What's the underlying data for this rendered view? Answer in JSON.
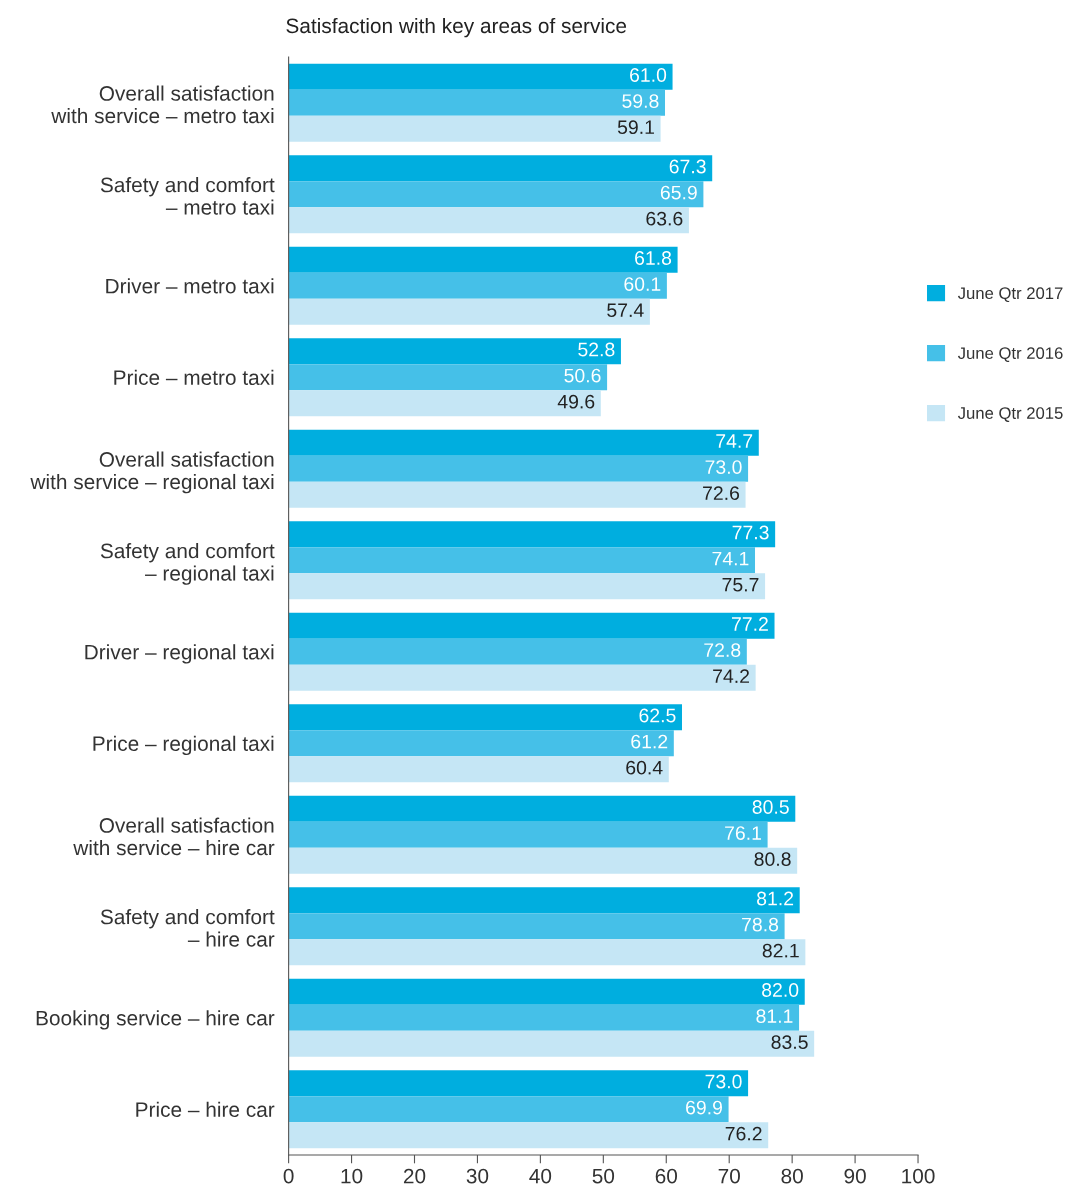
{
  "chart_data": {
    "type": "bar",
    "orientation": "horizontal",
    "title": "Satisfaction with key areas of service",
    "categories": [
      "Overall satisfaction\nwith service – metro taxi",
      "Safety and comfort\n– metro taxi",
      "Driver – metro taxi",
      "Price – metro taxi",
      "Overall satisfaction\nwith service – regional taxi",
      "Safety and comfort\n– regional taxi",
      "Driver – regional taxi",
      "Price – regional taxi",
      "Overall satisfaction\nwith service – hire car",
      "Safety and comfort\n– hire car",
      "Booking service – hire car",
      "Price – hire car"
    ],
    "series": [
      {
        "name": "June Qtr 2017",
        "color": "#00aedf",
        "values": [
          61.0,
          67.3,
          61.8,
          52.8,
          74.7,
          77.3,
          77.2,
          62.5,
          80.5,
          81.2,
          82.0,
          73.0
        ],
        "value_labels": [
          "61.0",
          "67.3",
          "61.8",
          "52.8",
          "74.7",
          "77.3",
          "77.2",
          "62.5",
          "80.5",
          "81.2",
          "82.0",
          "73.0"
        ]
      },
      {
        "name": "June Qtr 2016",
        "color": "#45c0e8",
        "values": [
          59.8,
          65.9,
          60.1,
          50.6,
          73.0,
          74.1,
          72.8,
          61.2,
          76.1,
          78.8,
          81.1,
          69.9
        ],
        "value_labels": [
          "59.8",
          "65.9",
          "60.1",
          "50.6",
          "73.0",
          "74.1",
          "72.8",
          "61.2",
          "76.1",
          "78.8",
          "81.1",
          "69.9"
        ]
      },
      {
        "name": "June Qtr 2015",
        "color": "#c5e6f5",
        "values": [
          59.1,
          63.6,
          57.4,
          49.6,
          72.6,
          75.7,
          74.2,
          60.4,
          80.8,
          82.1,
          83.5,
          76.2
        ],
        "value_labels": [
          "59.1",
          "63.6",
          "57.4",
          "49.6",
          "72.6",
          "75.7",
          "74.2",
          "60.4",
          "80.8",
          "82.1",
          "83.5",
          "76.2"
        ]
      }
    ],
    "xlim": [
      0,
      100
    ],
    "xticks": [
      0,
      10,
      20,
      30,
      40,
      50,
      60,
      70,
      80,
      90,
      100
    ],
    "legend": "right",
    "grid": false
  }
}
